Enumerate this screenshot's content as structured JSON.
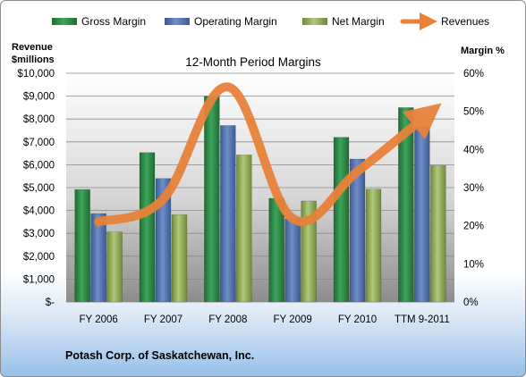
{
  "chart_data": {
    "type": "bar",
    "title": "12-Month Period Margins",
    "categories": [
      "FY 2006",
      "FY 2007",
      "FY 2008",
      "FY 2009",
      "FY 2010",
      "TTM 9-2011"
    ],
    "series": [
      {
        "name": "Gross Margin",
        "axis": "right",
        "color": "#2e8a46",
        "values": [
          29.5,
          39.2,
          54,
          27.2,
          43.2,
          51
        ]
      },
      {
        "name": "Operating Margin",
        "axis": "right",
        "color": "#5876b2",
        "values": [
          23.2,
          32.4,
          46.3,
          21.8,
          37.5,
          46
        ]
      },
      {
        "name": "Net Margin",
        "axis": "right",
        "color": "#9bb65e",
        "values": [
          18.4,
          22.9,
          38.6,
          26.5,
          29.6,
          35.8
        ]
      },
      {
        "name": "Revenues",
        "axis": "left",
        "type": "line",
        "color": "#e8823a",
        "values": [
          3500,
          4500,
          9400,
          3650,
          5700,
          8000
        ]
      }
    ],
    "left_axis": {
      "label": "Revenue $millions",
      "min": 0,
      "max": 10000,
      "step": 1000,
      "tick_labels": [
        "$-",
        "$1,000",
        "$2,000",
        "$3,000",
        "$4,000",
        "$5,000",
        "$6,000",
        "$7,000",
        "$8,000",
        "$9,000",
        "$10,000"
      ]
    },
    "right_axis": {
      "label": "Margin %",
      "min": 0,
      "max": 60,
      "step": 10,
      "tick_labels": [
        "0%",
        "10%",
        "20%",
        "30%",
        "40%",
        "50%",
        "60%"
      ]
    },
    "grid": true,
    "legend_position": "top"
  },
  "footer": {
    "company": "Potash Corp. of Saskatchewan, Inc."
  },
  "colors": {
    "plot_top": "#ffffff",
    "plot_bottom": "#8c8c8c",
    "grid": "#8a8a8a"
  }
}
